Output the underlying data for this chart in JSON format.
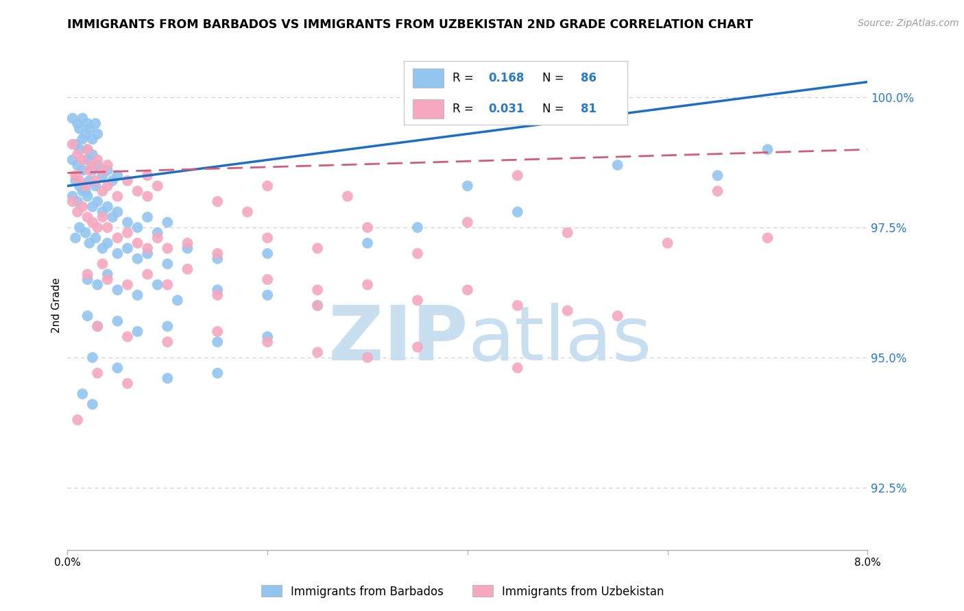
{
  "title": "IMMIGRANTS FROM BARBADOS VS IMMIGRANTS FROM UZBEKISTAN 2ND GRADE CORRELATION CHART",
  "source": "Source: ZipAtlas.com",
  "ylabel": "2nd Grade",
  "y_ticks": [
    92.5,
    95.0,
    97.5,
    100.0
  ],
  "y_tick_labels": [
    "92.5%",
    "95.0%",
    "97.5%",
    "100.0%"
  ],
  "x_min": 0.0,
  "x_max": 8.0,
  "y_min": 91.3,
  "y_max": 100.7,
  "color_blue": "#92c5f0",
  "color_pink": "#f5a8c0",
  "trendline_blue": "#1a6fc4",
  "trendline_pink": "#d45a7a",
  "watermark_zip": "ZIP",
  "watermark_atlas": "atlas",
  "watermark_color": "#c8dff0",
  "background_color": "#ffffff",
  "blue_points": [
    [
      0.05,
      99.6
    ],
    [
      0.1,
      99.5
    ],
    [
      0.12,
      99.4
    ],
    [
      0.15,
      99.6
    ],
    [
      0.18,
      99.3
    ],
    [
      0.2,
      99.5
    ],
    [
      0.22,
      99.4
    ],
    [
      0.25,
      99.2
    ],
    [
      0.28,
      99.5
    ],
    [
      0.3,
      99.3
    ],
    [
      0.08,
      99.1
    ],
    [
      0.12,
      99.0
    ],
    [
      0.15,
      99.2
    ],
    [
      0.2,
      99.0
    ],
    [
      0.25,
      98.9
    ],
    [
      0.05,
      98.8
    ],
    [
      0.1,
      98.7
    ],
    [
      0.15,
      98.6
    ],
    [
      0.2,
      98.8
    ],
    [
      0.25,
      98.6
    ],
    [
      0.3,
      98.7
    ],
    [
      0.35,
      98.5
    ],
    [
      0.4,
      98.6
    ],
    [
      0.45,
      98.4
    ],
    [
      0.5,
      98.5
    ],
    [
      0.08,
      98.4
    ],
    [
      0.12,
      98.3
    ],
    [
      0.18,
      98.2
    ],
    [
      0.22,
      98.4
    ],
    [
      0.28,
      98.3
    ],
    [
      0.05,
      98.1
    ],
    [
      0.1,
      98.0
    ],
    [
      0.15,
      98.2
    ],
    [
      0.2,
      98.1
    ],
    [
      0.25,
      97.9
    ],
    [
      0.3,
      98.0
    ],
    [
      0.35,
      97.8
    ],
    [
      0.4,
      97.9
    ],
    [
      0.45,
      97.7
    ],
    [
      0.5,
      97.8
    ],
    [
      0.6,
      97.6
    ],
    [
      0.7,
      97.5
    ],
    [
      0.8,
      97.7
    ],
    [
      0.9,
      97.4
    ],
    [
      1.0,
      97.6
    ],
    [
      0.08,
      97.3
    ],
    [
      0.12,
      97.5
    ],
    [
      0.18,
      97.4
    ],
    [
      0.22,
      97.2
    ],
    [
      0.28,
      97.3
    ],
    [
      0.35,
      97.1
    ],
    [
      0.4,
      97.2
    ],
    [
      0.5,
      97.0
    ],
    [
      0.6,
      97.1
    ],
    [
      0.7,
      96.9
    ],
    [
      0.8,
      97.0
    ],
    [
      1.0,
      96.8
    ],
    [
      1.2,
      97.1
    ],
    [
      1.5,
      96.9
    ],
    [
      2.0,
      97.0
    ],
    [
      0.2,
      96.5
    ],
    [
      0.3,
      96.4
    ],
    [
      0.4,
      96.6
    ],
    [
      0.5,
      96.3
    ],
    [
      0.7,
      96.2
    ],
    [
      0.9,
      96.4
    ],
    [
      1.1,
      96.1
    ],
    [
      1.5,
      96.3
    ],
    [
      2.0,
      96.2
    ],
    [
      2.5,
      96.0
    ],
    [
      0.2,
      95.8
    ],
    [
      0.3,
      95.6
    ],
    [
      0.5,
      95.7
    ],
    [
      0.7,
      95.5
    ],
    [
      1.0,
      95.6
    ],
    [
      1.5,
      95.3
    ],
    [
      2.0,
      95.4
    ],
    [
      0.25,
      95.0
    ],
    [
      0.5,
      94.8
    ],
    [
      1.0,
      94.6
    ],
    [
      1.5,
      94.7
    ],
    [
      0.15,
      94.3
    ],
    [
      0.25,
      94.1
    ],
    [
      5.5,
      98.7
    ],
    [
      7.0,
      99.0
    ],
    [
      4.0,
      98.3
    ],
    [
      6.5,
      98.5
    ],
    [
      3.5,
      97.5
    ],
    [
      4.5,
      97.8
    ],
    [
      3.0,
      97.2
    ]
  ],
  "pink_points": [
    [
      0.05,
      99.1
    ],
    [
      0.1,
      98.9
    ],
    [
      0.15,
      98.8
    ],
    [
      0.2,
      99.0
    ],
    [
      0.25,
      98.7
    ],
    [
      0.3,
      98.8
    ],
    [
      0.35,
      98.6
    ],
    [
      0.4,
      98.7
    ],
    [
      0.08,
      98.5
    ],
    [
      0.12,
      98.4
    ],
    [
      0.18,
      98.3
    ],
    [
      0.22,
      98.6
    ],
    [
      0.28,
      98.4
    ],
    [
      0.35,
      98.2
    ],
    [
      0.4,
      98.3
    ],
    [
      0.5,
      98.1
    ],
    [
      0.6,
      98.4
    ],
    [
      0.7,
      98.2
    ],
    [
      0.8,
      98.1
    ],
    [
      0.9,
      98.3
    ],
    [
      0.05,
      98.0
    ],
    [
      0.1,
      97.8
    ],
    [
      0.15,
      97.9
    ],
    [
      0.2,
      97.7
    ],
    [
      0.25,
      97.6
    ],
    [
      0.3,
      97.5
    ],
    [
      0.35,
      97.7
    ],
    [
      0.4,
      97.5
    ],
    [
      0.5,
      97.3
    ],
    [
      0.6,
      97.4
    ],
    [
      0.7,
      97.2
    ],
    [
      0.8,
      97.1
    ],
    [
      0.9,
      97.3
    ],
    [
      1.0,
      97.1
    ],
    [
      1.2,
      97.2
    ],
    [
      1.5,
      97.0
    ],
    [
      2.0,
      97.3
    ],
    [
      2.5,
      97.1
    ],
    [
      0.8,
      98.5
    ],
    [
      1.5,
      98.0
    ],
    [
      0.2,
      96.6
    ],
    [
      0.4,
      96.5
    ],
    [
      0.6,
      96.4
    ],
    [
      0.8,
      96.6
    ],
    [
      1.0,
      96.4
    ],
    [
      1.5,
      96.2
    ],
    [
      2.0,
      96.5
    ],
    [
      2.5,
      96.3
    ],
    [
      3.0,
      96.4
    ],
    [
      3.5,
      96.1
    ],
    [
      4.0,
      96.3
    ],
    [
      4.5,
      96.0
    ],
    [
      5.0,
      95.9
    ],
    [
      0.3,
      95.6
    ],
    [
      0.6,
      95.4
    ],
    [
      1.0,
      95.3
    ],
    [
      1.5,
      95.5
    ],
    [
      2.0,
      95.3
    ],
    [
      2.5,
      95.1
    ],
    [
      3.0,
      95.0
    ],
    [
      3.5,
      95.2
    ],
    [
      0.3,
      94.7
    ],
    [
      0.6,
      94.5
    ],
    [
      4.5,
      94.8
    ],
    [
      0.1,
      93.8
    ],
    [
      4.0,
      97.6
    ],
    [
      5.0,
      97.4
    ],
    [
      6.0,
      97.2
    ],
    [
      7.0,
      97.3
    ],
    [
      3.0,
      97.5
    ],
    [
      2.0,
      98.3
    ],
    [
      3.5,
      97.0
    ],
    [
      0.35,
      96.8
    ],
    [
      1.2,
      96.7
    ],
    [
      2.5,
      96.0
    ],
    [
      5.5,
      95.8
    ],
    [
      6.5,
      98.2
    ],
    [
      4.5,
      98.5
    ],
    [
      2.8,
      98.1
    ],
    [
      1.8,
      97.8
    ]
  ],
  "blue_trend_x": [
    0.0,
    8.0
  ],
  "blue_trend_y": [
    98.3,
    100.3
  ],
  "pink_trend_x": [
    0.0,
    8.0
  ],
  "pink_trend_y": [
    98.55,
    99.0
  ]
}
